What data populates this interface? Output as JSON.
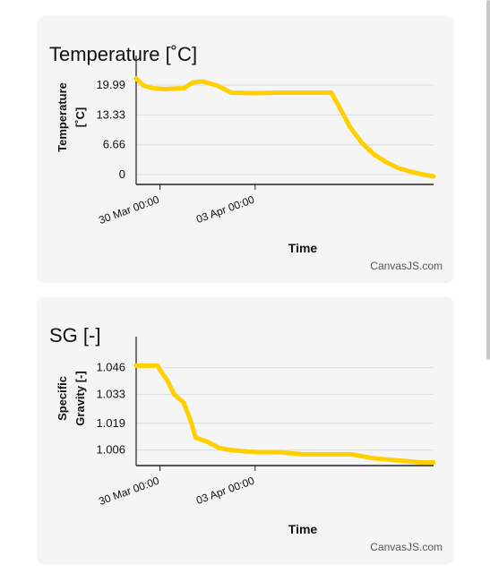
{
  "charts": [
    {
      "id": "temp",
      "title": "Temperature [˚C]",
      "credit": "CanvasJS.com",
      "chart_data": {
        "type": "line",
        "xlabel": "Time",
        "ylabel_lines": [
          "Temperature",
          "[˚C]"
        ],
        "y_ticks": [
          "19.99",
          "13.33",
          "6.66",
          "0"
        ],
        "x_ticks": [
          "30 Mar 00:00",
          "03 Apr 00:00"
        ],
        "color": "#FFD000",
        "x_points_days": [
          0,
          0.3,
          0.7,
          1.2,
          2.0,
          2.4,
          2.8,
          3.4,
          4.0,
          5.0,
          6.0,
          7.0,
          8.0,
          8.2,
          8.5,
          9.0,
          9.5,
          10.0,
          10.5,
          11.0,
          11.5,
          12.0,
          12.5
        ],
        "y_points": [
          21.5,
          19.9,
          19.3,
          19.1,
          19.3,
          20.6,
          20.8,
          19.9,
          18.3,
          18.2,
          18.3,
          18.3,
          18.3,
          18.3,
          15.5,
          10.5,
          7.0,
          4.5,
          2.8,
          1.5,
          0.7,
          0.1,
          -0.4
        ]
      }
    },
    {
      "id": "sg",
      "title": "SG [-]",
      "credit": "CanvasJS.com",
      "chart_data": {
        "type": "line",
        "xlabel": "Time",
        "ylabel_lines": [
          "Specific",
          "Gravity [-]"
        ],
        "y_ticks": [
          "1.046",
          "1.033",
          "1.019",
          "1.006"
        ],
        "x_ticks": [
          "30 Mar 00:00",
          "03 Apr 00:00"
        ],
        "color": "#FFD000",
        "x_points_days": [
          0,
          0.9,
          1.0,
          1.3,
          1.6,
          2.0,
          2.3,
          2.5,
          3.0,
          3.5,
          4.0,
          5.0,
          6.0,
          7.0,
          8.0,
          9.0,
          10.0,
          11.0,
          12.0,
          12.5
        ],
        "y_points": [
          1.047,
          1.047,
          1.045,
          1.04,
          1.033,
          1.029,
          1.02,
          1.012,
          1.01,
          1.007,
          1.006,
          1.005,
          1.005,
          1.004,
          1.004,
          1.004,
          1.002,
          1.001,
          1.0,
          1.0
        ]
      }
    }
  ]
}
